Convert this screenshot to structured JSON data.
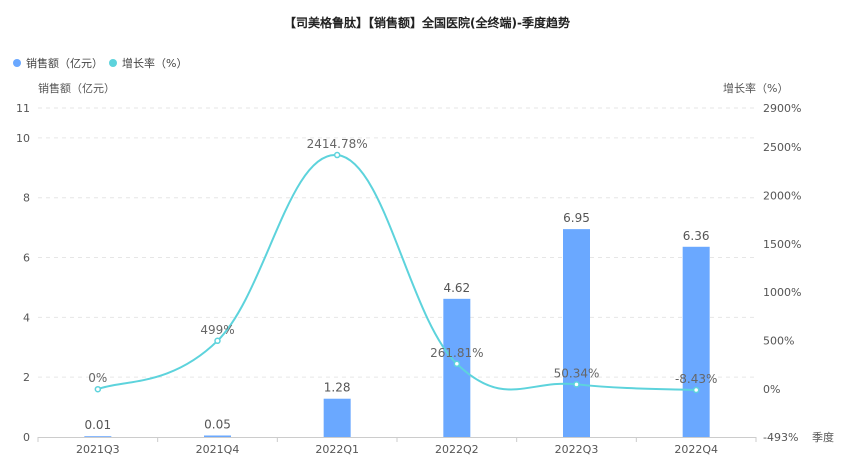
{
  "chart_data": {
    "type": "bar",
    "title": "【司美格鲁肽】【销售额】全国医院(全终端)-季度趋势",
    "categories": [
      "2021Q3",
      "2021Q4",
      "2022Q1",
      "2022Q2",
      "2022Q3",
      "2022Q4"
    ],
    "series": [
      {
        "name": "销售额（亿元）",
        "type": "bar",
        "axis": "left",
        "color": "#6aa8ff",
        "values": [
          0.01,
          0.05,
          1.28,
          4.62,
          6.95,
          6.36
        ],
        "labels": [
          "0.01",
          "0.05",
          "1.28",
          "4.62",
          "6.95",
          "6.36"
        ]
      },
      {
        "name": "增长率（%）",
        "type": "line",
        "axis": "right",
        "color": "#5dd3dc",
        "smooth": true,
        "values": [
          0,
          499,
          2414.78,
          261.81,
          50.34,
          -8.43
        ],
        "labels": [
          "0%",
          "499%",
          "2414.78%",
          "261.81%",
          "50.34%",
          "-8.43%"
        ]
      }
    ],
    "xlabel": "季度",
    "ylabel_left": "销售额（亿元）",
    "ylabel_right": "增长率（%）",
    "ylim_left": [
      0,
      11
    ],
    "yticks_left": [
      0,
      2,
      4,
      6,
      8,
      10,
      11
    ],
    "ylim_right": [
      -493,
      2900
    ],
    "yticks_right": [
      -493,
      0,
      500,
      1000,
      1500,
      2000,
      2500,
      2900
    ],
    "ytick_labels_right": [
      "-493%",
      "0%",
      "500%",
      "1000%",
      "1500%",
      "2000%",
      "2500%",
      "2900%"
    ],
    "grid": true,
    "legend_position": "top-left"
  }
}
